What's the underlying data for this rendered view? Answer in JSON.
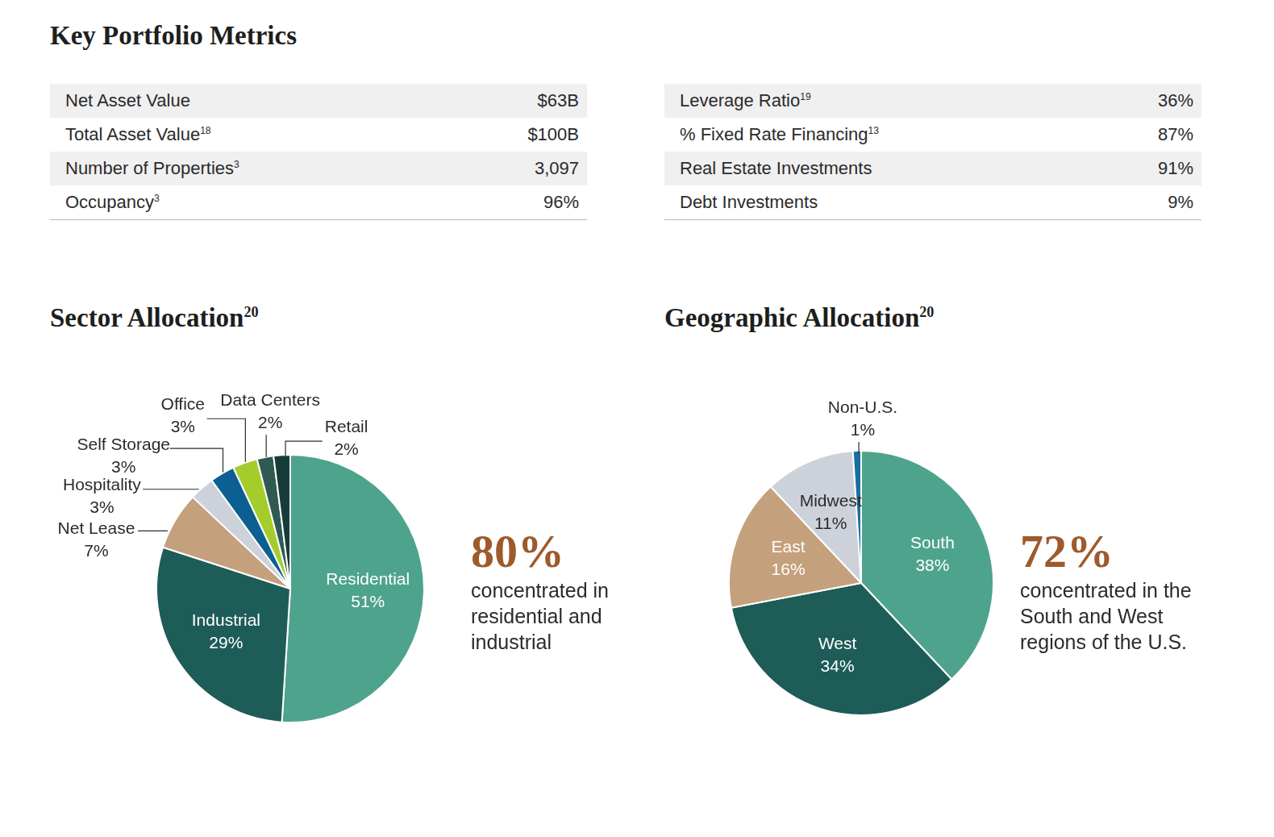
{
  "title": "Key Portfolio Metrics",
  "tables": [
    [
      {
        "label": "Net Asset Value",
        "value": "$63B"
      },
      {
        "label": "Total Asset Value",
        "note": "18",
        "value": "$100B"
      },
      {
        "label": "Number of Properties",
        "note": "3",
        "value": "3,097"
      },
      {
        "label": "Occupancy",
        "note": "3",
        "value": "96%"
      }
    ],
    [
      {
        "label": "Leverage Ratio",
        "note": "19",
        "value": "36%"
      },
      {
        "label": "% Fixed Rate Financing",
        "note": "13",
        "value": "87%"
      },
      {
        "label": "Real Estate Investments",
        "value": "91%"
      },
      {
        "label": "Debt Investments",
        "value": "9%"
      }
    ]
  ],
  "chart_data": [
    {
      "type": "pie",
      "title": "Sector Allocation",
      "title_note": "20",
      "categories": [
        "Residential",
        "Industrial",
        "Net Lease",
        "Hospitality",
        "Self Storage",
        "Office",
        "Data Centers",
        "Retail"
      ],
      "values": [
        51,
        29,
        7,
        3,
        3,
        3,
        2,
        2
      ],
      "value_labels": [
        "51%",
        "29%",
        "7%",
        "3%",
        "3%",
        "3%",
        "2%",
        "2%"
      ],
      "colors": [
        "#4ea38c",
        "#1e5c58",
        "#c4a07c",
        "#cdd1d9",
        "#0b6091",
        "#a4cd2c",
        "#2f5a52",
        "#163c3a"
      ],
      "data_labels": true,
      "callout": {
        "headline": "80%",
        "text": "concentrated in residential and industrial"
      }
    },
    {
      "type": "pie",
      "title": "Geographic Allocation",
      "title_note": "20",
      "categories": [
        "South",
        "West",
        "East",
        "Midwest",
        "Non-U.S."
      ],
      "values": [
        38,
        34,
        16,
        11,
        1
      ],
      "value_labels": [
        "38%",
        "34%",
        "16%",
        "11%",
        "1%"
      ],
      "colors": [
        "#4ea38c",
        "#1e5c58",
        "#c4a07c",
        "#cdd1d9",
        "#1a6ea0"
      ],
      "data_labels": true,
      "callout": {
        "headline": "72%",
        "text": "concentrated in the South and West regions of the U.S."
      }
    }
  ]
}
